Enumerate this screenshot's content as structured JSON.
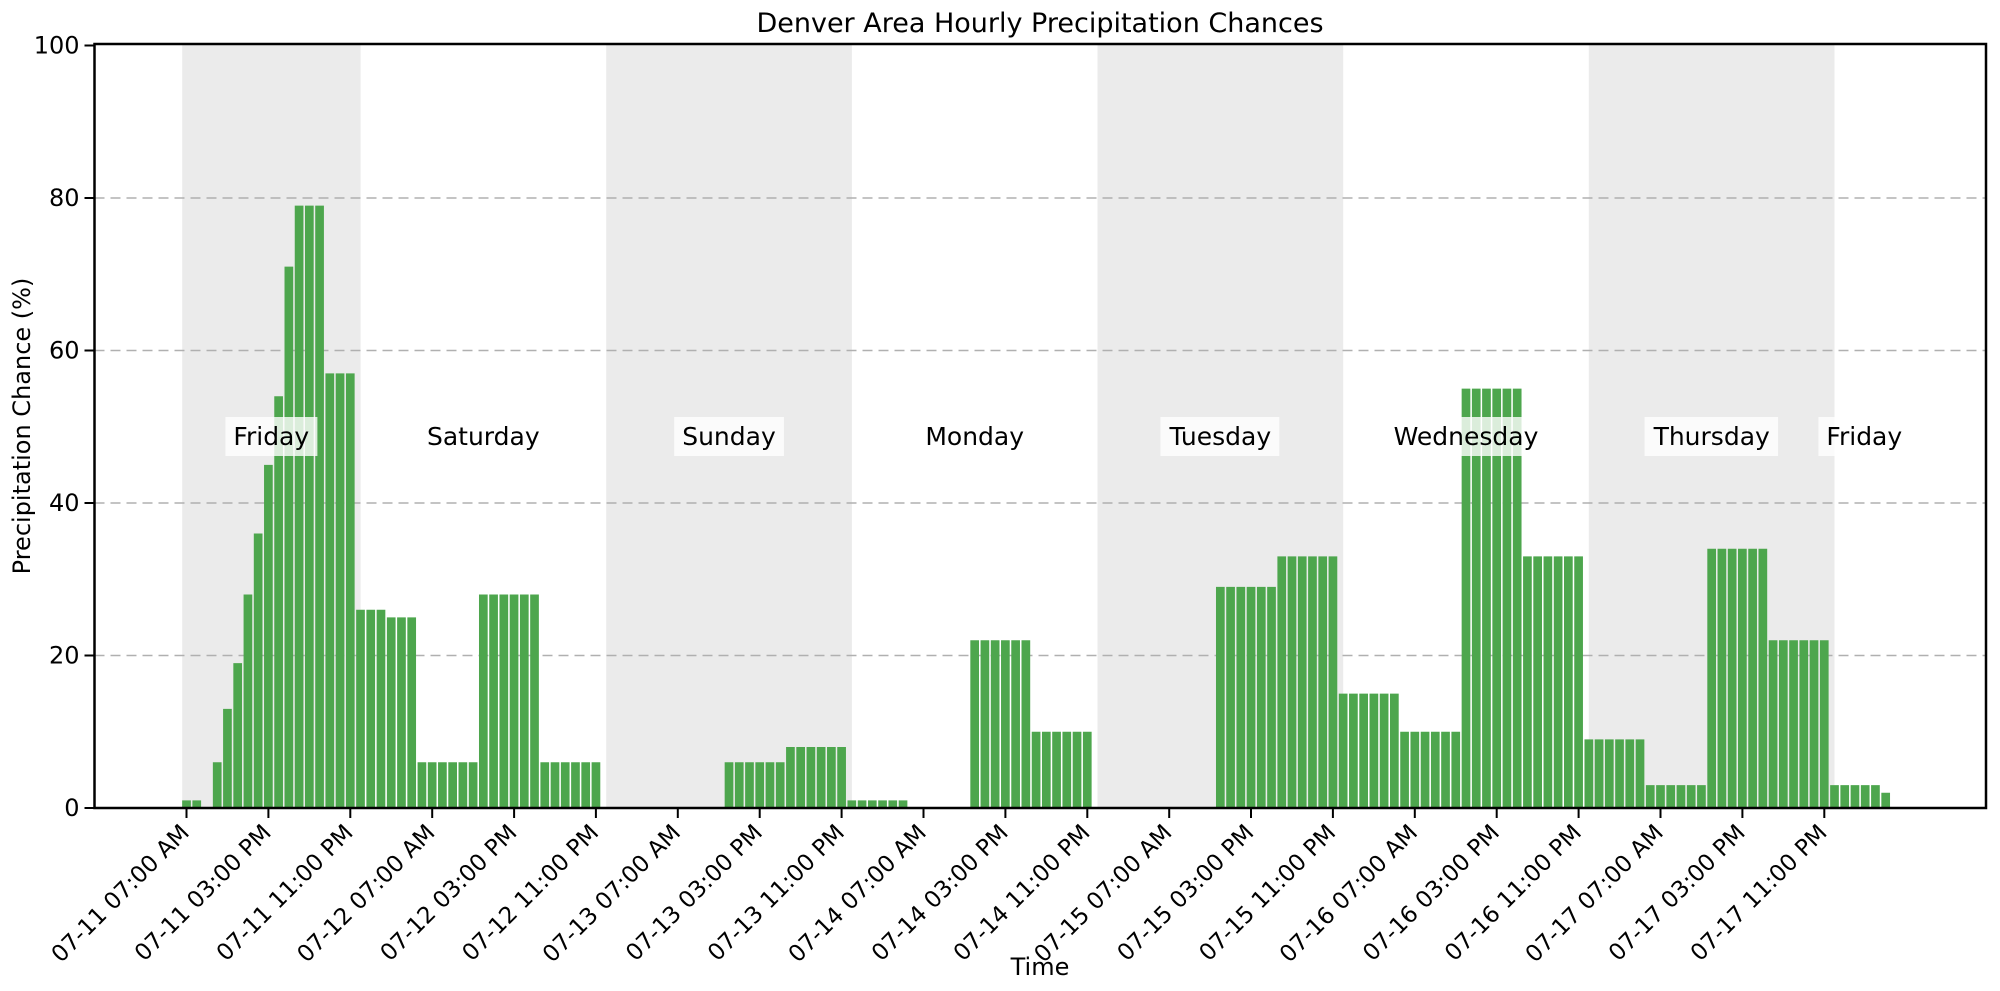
{
  "title": "Denver Area Hourly Precipitation Chances",
  "xlabel": "Time",
  "ylabel": "Precipitation Chance (%)",
  "chart_data": {
    "type": "bar",
    "title": "Denver Area Hourly Precipitation Chances",
    "xlabel": "Time",
    "ylabel": "Precipitation Chance (%)",
    "ylim": [
      0,
      100
    ],
    "ytick_labels": [
      "0",
      "20",
      "40",
      "60",
      "80",
      "100"
    ],
    "grid_y_values": [
      20,
      40,
      60,
      80
    ],
    "grid_style": "dashed-horizontal",
    "legend": "none",
    "bar_color": "#4da64d",
    "band_color": "#ebebeb",
    "grid_color": "#b0b0b0",
    "spine_color": "#000000",
    "day_label_bg": "rgba(255,255,255,0.8)",
    "start_time": "07-11 07:00 AM",
    "hours_per_xtick": 8,
    "xtick_labels": [
      "07-11 07:00 AM",
      "07-11 03:00 PM",
      "07-11 11:00 PM",
      "07-12 07:00 AM",
      "07-12 03:00 PM",
      "07-12 11:00 PM",
      "07-13 07:00 AM",
      "07-13 03:00 PM",
      "07-13 11:00 PM",
      "07-14 07:00 AM",
      "07-14 03:00 PM",
      "07-14 11:00 PM",
      "07-15 07:00 AM",
      "07-15 03:00 PM",
      "07-15 11:00 PM",
      "07-16 07:00 AM",
      "07-16 03:00 PM",
      "07-16 11:00 PM",
      "07-17 07:00 AM",
      "07-17 03:00 PM",
      "07-17 11:00 PM"
    ],
    "days": [
      {
        "date": "07-11",
        "label": "Friday",
        "shaded": true,
        "first_hour": 7,
        "values": [
          1,
          1,
          0,
          6,
          13,
          19,
          28,
          36,
          45,
          54,
          71,
          79,
          79,
          79,
          57,
          57,
          57
        ]
      },
      {
        "date": "07-12",
        "label": "Saturday",
        "shaded": false,
        "first_hour": 0,
        "values": [
          26,
          26,
          26,
          25,
          25,
          25,
          6,
          6,
          6,
          6,
          6,
          6,
          28,
          28,
          28,
          28,
          28,
          28,
          6,
          6,
          6,
          6,
          6,
          6
        ]
      },
      {
        "date": "07-13",
        "label": "Sunday",
        "shaded": true,
        "first_hour": 0,
        "values": [
          0,
          0,
          0,
          0,
          0,
          0,
          0,
          0,
          0,
          0,
          0,
          0,
          6,
          6,
          6,
          6,
          6,
          6,
          8,
          8,
          8,
          8,
          8,
          8
        ]
      },
      {
        "date": "07-14",
        "label": "Monday",
        "shaded": false,
        "first_hour": 0,
        "values": [
          1,
          1,
          1,
          1,
          1,
          1,
          0,
          0,
          0,
          0,
          0,
          0,
          22,
          22,
          22,
          22,
          22,
          22,
          10,
          10,
          10,
          10,
          10,
          10
        ]
      },
      {
        "date": "07-15",
        "label": "Tuesday",
        "shaded": true,
        "first_hour": 0,
        "values": [
          0,
          0,
          0,
          0,
          0,
          0,
          0,
          0,
          0,
          0,
          0,
          0,
          29,
          29,
          29,
          29,
          29,
          29,
          33,
          33,
          33,
          33,
          33,
          33
        ]
      },
      {
        "date": "07-16",
        "label": "Wednesday",
        "shaded": false,
        "first_hour": 0,
        "values": [
          15,
          15,
          15,
          15,
          15,
          15,
          10,
          10,
          10,
          10,
          10,
          10,
          55,
          55,
          55,
          55,
          55,
          55,
          33,
          33,
          33,
          33,
          33,
          33
        ]
      },
      {
        "date": "07-17",
        "label": "Thursday",
        "shaded": true,
        "first_hour": 0,
        "values": [
          9,
          9,
          9,
          9,
          9,
          9,
          3,
          3,
          3,
          3,
          3,
          3,
          34,
          34,
          34,
          34,
          34,
          34,
          22,
          22,
          22,
          22,
          22,
          22
        ]
      },
      {
        "date": "07-18",
        "label": "Friday",
        "shaded": false,
        "first_hour": 0,
        "values": [
          3,
          3,
          3,
          3,
          3,
          2
        ]
      }
    ]
  }
}
